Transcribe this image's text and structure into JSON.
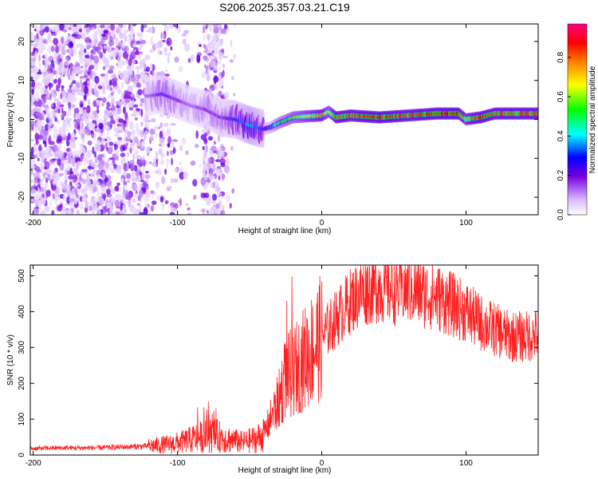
{
  "chart_data": [
    {
      "type": "heatmap",
      "title": "S206.2025.357.03.21.C19",
      "xlabel": "Height of straight line (km)",
      "ylabel": "Frequency (Hz)",
      "xlim": [
        -202,
        150
      ],
      "ylim": [
        -24.5,
        24.5
      ],
      "x_ticks": [
        -200,
        -100,
        0,
        100
      ],
      "y_ticks": [
        -20,
        -10,
        0,
        10,
        20
      ],
      "x_tick_labels": [
        "-200",
        "-100",
        "0",
        "100"
      ],
      "y_tick_labels": [
        "-20",
        "-10",
        "0",
        "10",
        "20"
      ],
      "colorbar": {
        "label": "Normalized spectral amplitude",
        "range": [
          0,
          0.97
        ],
        "ticks": [
          0,
          0.2,
          0.4,
          0.6,
          0.8
        ],
        "tick_labels": [
          "0.0",
          "0.2",
          "0.4",
          "0.6",
          "0.8"
        ],
        "colormap": [
          "#ffffff",
          "#7a00e0",
          "#0000ff",
          "#00ffff",
          "#00ff00",
          "#ffff00",
          "#ff8000",
          "#ff0000",
          "#ff0080"
        ]
      },
      "ridge": {
        "description": "dominant frequency track",
        "x": [
          -120,
          -110,
          -100,
          -90,
          -80,
          -70,
          -60,
          -50,
          -40,
          -35,
          -30,
          -20,
          -10,
          0,
          5,
          10,
          20,
          40,
          60,
          80,
          95,
          100,
          110,
          120,
          150
        ],
        "y": [
          6,
          6.5,
          5,
          3.5,
          2.5,
          0.5,
          0,
          -1.5,
          -2.5,
          -2,
          -1,
          0.5,
          0.8,
          1,
          2,
          0.5,
          1,
          0.5,
          1,
          1.5,
          1.5,
          0,
          0.5,
          1.5,
          1.5
        ],
        "amplitude": [
          0.15,
          0.25,
          0.2,
          0.15,
          0.2,
          0.2,
          0.3,
          0.4,
          0.3,
          0.35,
          0.5,
          0.6,
          0.7,
          0.8,
          0.65,
          0.85,
          0.85,
          0.9,
          0.85,
          0.9,
          0.9,
          0.75,
          0.9,
          0.85,
          0.85
        ]
      }
    },
    {
      "type": "line",
      "xlabel": "Height of straight line (km)",
      "ylabel": "SNR (10 * v/v)",
      "xlim": [
        -202,
        150
      ],
      "ylim": [
        0,
        530
      ],
      "x_ticks": [
        -200,
        -100,
        0,
        100
      ],
      "y_ticks": [
        0,
        100,
        200,
        300,
        400,
        500
      ],
      "x_tick_labels": [
        "-200",
        "-100",
        "0",
        "100"
      ],
      "y_tick_labels": [
        "0",
        "100",
        "200",
        "300",
        "400",
        "500"
      ],
      "line_color": "#ff2020",
      "series": [
        {
          "name": "SNR",
          "x": [
            -202,
            -180,
            -160,
            -140,
            -120,
            -105,
            -95,
            -85,
            -75,
            -65,
            -55,
            -45,
            -40,
            -30,
            -25,
            -20,
            -10,
            0,
            10,
            20,
            30,
            40,
            50,
            60,
            70,
            80,
            90,
            100,
            110,
            120,
            130,
            140,
            150
          ],
          "y": [
            18,
            20,
            20,
            22,
            25,
            30,
            38,
            50,
            55,
            45,
            35,
            45,
            60,
            150,
            220,
            230,
            280,
            330,
            380,
            430,
            460,
            470,
            460,
            465,
            450,
            440,
            420,
            400,
            370,
            350,
            330,
            330,
            335
          ]
        }
      ]
    }
  ]
}
